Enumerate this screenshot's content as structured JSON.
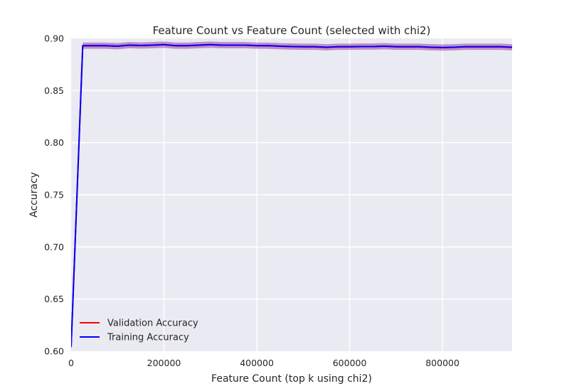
{
  "chart_data": {
    "type": "line",
    "title": "Feature Count vs Feature Count (selected with chi2)",
    "xlabel": "Feature Count (top k using chi2)",
    "ylabel": "Accuracy",
    "xlim": [
      0,
      950000
    ],
    "ylim": [
      0.6,
      0.9
    ],
    "xticks": [
      0,
      200000,
      400000,
      600000,
      800000
    ],
    "xtick_labels": [
      "0",
      "200000",
      "400000",
      "600000",
      "800000"
    ],
    "yticks": [
      0.6,
      0.65,
      0.7,
      0.75,
      0.8,
      0.85,
      0.9
    ],
    "ytick_labels": [
      "0.60",
      "0.65",
      "0.70",
      "0.75",
      "0.80",
      "0.85",
      "0.90"
    ],
    "grid": true,
    "legend_position": "lower-left",
    "background_color": "#EAEAF2",
    "grid_color": "#FFFFFF",
    "band_color": "#800080",
    "x": [
      0,
      25000,
      50000,
      75000,
      100000,
      125000,
      150000,
      175000,
      200000,
      225000,
      250000,
      275000,
      300000,
      325000,
      350000,
      375000,
      400000,
      425000,
      450000,
      475000,
      500000,
      525000,
      550000,
      575000,
      600000,
      625000,
      650000,
      675000,
      700000,
      725000,
      750000,
      775000,
      800000,
      825000,
      850000,
      875000,
      900000,
      925000,
      950000
    ],
    "series": [
      {
        "name": "Validation Accuracy",
        "color": "#FF0000",
        "values": [
          0.604,
          0.893,
          0.893,
          0.893,
          0.8925,
          0.8935,
          0.8932,
          0.8935,
          0.894,
          0.893,
          0.893,
          0.8935,
          0.894,
          0.8935,
          0.8935,
          0.8935,
          0.893,
          0.893,
          0.8925,
          0.8922,
          0.892,
          0.892,
          0.8915,
          0.892,
          0.892,
          0.8922,
          0.8922,
          0.8925,
          0.892,
          0.892,
          0.892,
          0.8915,
          0.8912,
          0.8915,
          0.892,
          0.892,
          0.892,
          0.892,
          0.8915
        ],
        "spread": [
          0.004,
          0.003,
          0.003,
          0.003,
          0.003,
          0.003,
          0.003,
          0.003,
          0.003,
          0.003,
          0.003,
          0.003,
          0.003,
          0.003,
          0.003,
          0.003,
          0.003,
          0.003,
          0.003,
          0.003,
          0.003,
          0.003,
          0.003,
          0.003,
          0.003,
          0.003,
          0.003,
          0.003,
          0.003,
          0.003,
          0.003,
          0.003,
          0.003,
          0.003,
          0.003,
          0.003,
          0.003,
          0.003,
          0.003
        ]
      },
      {
        "name": "Training Accuracy",
        "color": "#0000FF",
        "values": [
          0.604,
          0.893,
          0.893,
          0.893,
          0.8925,
          0.8935,
          0.8932,
          0.8935,
          0.894,
          0.893,
          0.893,
          0.8935,
          0.894,
          0.8935,
          0.8935,
          0.8935,
          0.893,
          0.893,
          0.8925,
          0.8922,
          0.892,
          0.892,
          0.8915,
          0.892,
          0.892,
          0.8922,
          0.8922,
          0.8925,
          0.892,
          0.892,
          0.892,
          0.8915,
          0.8912,
          0.8915,
          0.892,
          0.892,
          0.892,
          0.892,
          0.8915
        ],
        "spread": [
          0.004,
          0.003,
          0.003,
          0.003,
          0.003,
          0.003,
          0.003,
          0.003,
          0.003,
          0.003,
          0.003,
          0.003,
          0.003,
          0.003,
          0.003,
          0.003,
          0.003,
          0.003,
          0.003,
          0.003,
          0.003,
          0.003,
          0.003,
          0.003,
          0.003,
          0.003,
          0.003,
          0.003,
          0.003,
          0.003,
          0.003,
          0.003,
          0.003,
          0.003,
          0.003,
          0.003,
          0.003,
          0.003,
          0.003
        ]
      }
    ]
  }
}
